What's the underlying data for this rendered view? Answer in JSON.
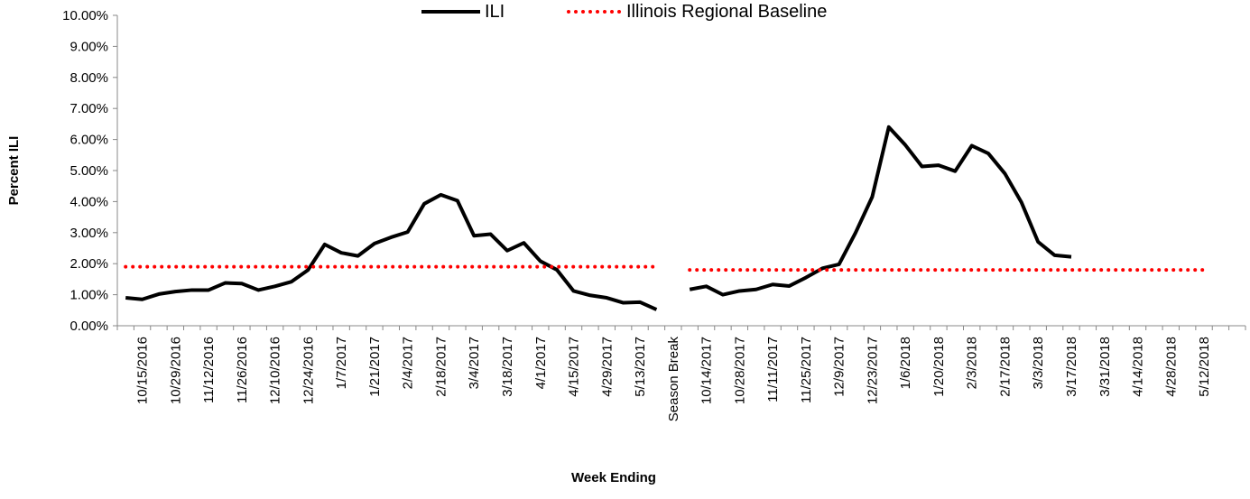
{
  "chart_data": {
    "type": "line",
    "y_label": "Percent ILI",
    "x_label": "Week Ending",
    "categories": [
      null,
      "10/15/2016",
      null,
      "10/29/2016",
      null,
      "11/12/2016",
      null,
      "11/26/2016",
      null,
      "12/10/2016",
      null,
      "12/24/2016",
      null,
      "1/7/2017",
      null,
      "1/21/2017",
      null,
      "2/4/2017",
      null,
      "2/18/2017",
      null,
      "3/4/2017",
      null,
      "3/18/2017",
      null,
      "4/1/2017",
      null,
      "4/15/2017",
      null,
      "4/29/2017",
      null,
      "5/13/2017",
      null,
      "Season Break",
      null,
      "10/14/2017",
      null,
      "10/28/2017",
      null,
      "11/11/2017",
      null,
      "11/25/2017",
      null,
      "12/9/2017",
      null,
      "12/23/2017",
      null,
      "1/6/2018",
      null,
      "1/20/2018",
      null,
      "2/3/2018",
      null,
      "2/17/2018",
      null,
      "3/3/2018",
      null,
      "3/17/2018",
      null,
      "3/31/2018",
      null,
      "4/14/2018",
      null,
      "4/28/2018",
      null,
      "5/12/2018",
      null,
      null
    ],
    "series": [
      {
        "name": "ILI",
        "color": "#000000",
        "line_style": "solid",
        "values": [
          0.9,
          0.85,
          1.02,
          1.1,
          1.15,
          1.15,
          1.38,
          1.36,
          1.15,
          1.27,
          1.42,
          1.8,
          2.62,
          2.35,
          2.25,
          2.65,
          2.85,
          3.02,
          3.93,
          4.22,
          4.03,
          2.9,
          2.95,
          2.42,
          2.67,
          2.08,
          1.8,
          1.12,
          0.98,
          0.9,
          0.74,
          0.76,
          0.52,
          null,
          1.17,
          1.27,
          1.0,
          1.12,
          1.17,
          1.33,
          1.28,
          1.55,
          1.85,
          1.98,
          3.0,
          4.15,
          6.4,
          5.82,
          5.13,
          5.17,
          4.98,
          5.8,
          5.55,
          4.9,
          3.97,
          2.7,
          2.27,
          2.22,
          null,
          null,
          null,
          null,
          null,
          null,
          null,
          null,
          null,
          null
        ]
      },
      {
        "name": "Illinois Regional Baseline",
        "color": "#ff0000",
        "line_style": "dotted",
        "values": [
          1.9,
          1.9,
          1.9,
          1.9,
          1.9,
          1.9,
          1.9,
          1.9,
          1.9,
          1.9,
          1.9,
          1.9,
          1.9,
          1.9,
          1.9,
          1.9,
          1.9,
          1.9,
          1.9,
          1.9,
          1.9,
          1.9,
          1.9,
          1.9,
          1.9,
          1.9,
          1.9,
          1.9,
          1.9,
          1.9,
          1.9,
          1.9,
          1.9,
          null,
          1.8,
          1.8,
          1.8,
          1.8,
          1.8,
          1.8,
          1.8,
          1.8,
          1.8,
          1.8,
          1.8,
          1.8,
          1.8,
          1.8,
          1.8,
          1.8,
          1.8,
          1.8,
          1.8,
          1.8,
          1.8,
          1.8,
          1.8,
          1.8,
          1.8,
          1.8,
          1.8,
          1.8,
          1.8,
          1.8,
          1.8,
          1.8,
          null,
          null
        ]
      }
    ],
    "ylim": [
      0,
      10
    ],
    "yticks": [
      {
        "value": 0,
        "label": "0.00%"
      },
      {
        "value": 1,
        "label": "1.00%"
      },
      {
        "value": 2,
        "label": "2.00%"
      },
      {
        "value": 3,
        "label": "3.00%"
      },
      {
        "value": 4,
        "label": "4.00%"
      },
      {
        "value": 5,
        "label": "5.00%"
      },
      {
        "value": 6,
        "label": "6.00%"
      },
      {
        "value": 7,
        "label": "7.00%"
      },
      {
        "value": 8,
        "label": "8.00%"
      },
      {
        "value": 9,
        "label": "9.00%"
      },
      {
        "value": 10,
        "label": "10.00%"
      }
    ],
    "grid": false,
    "legend": "top"
  }
}
